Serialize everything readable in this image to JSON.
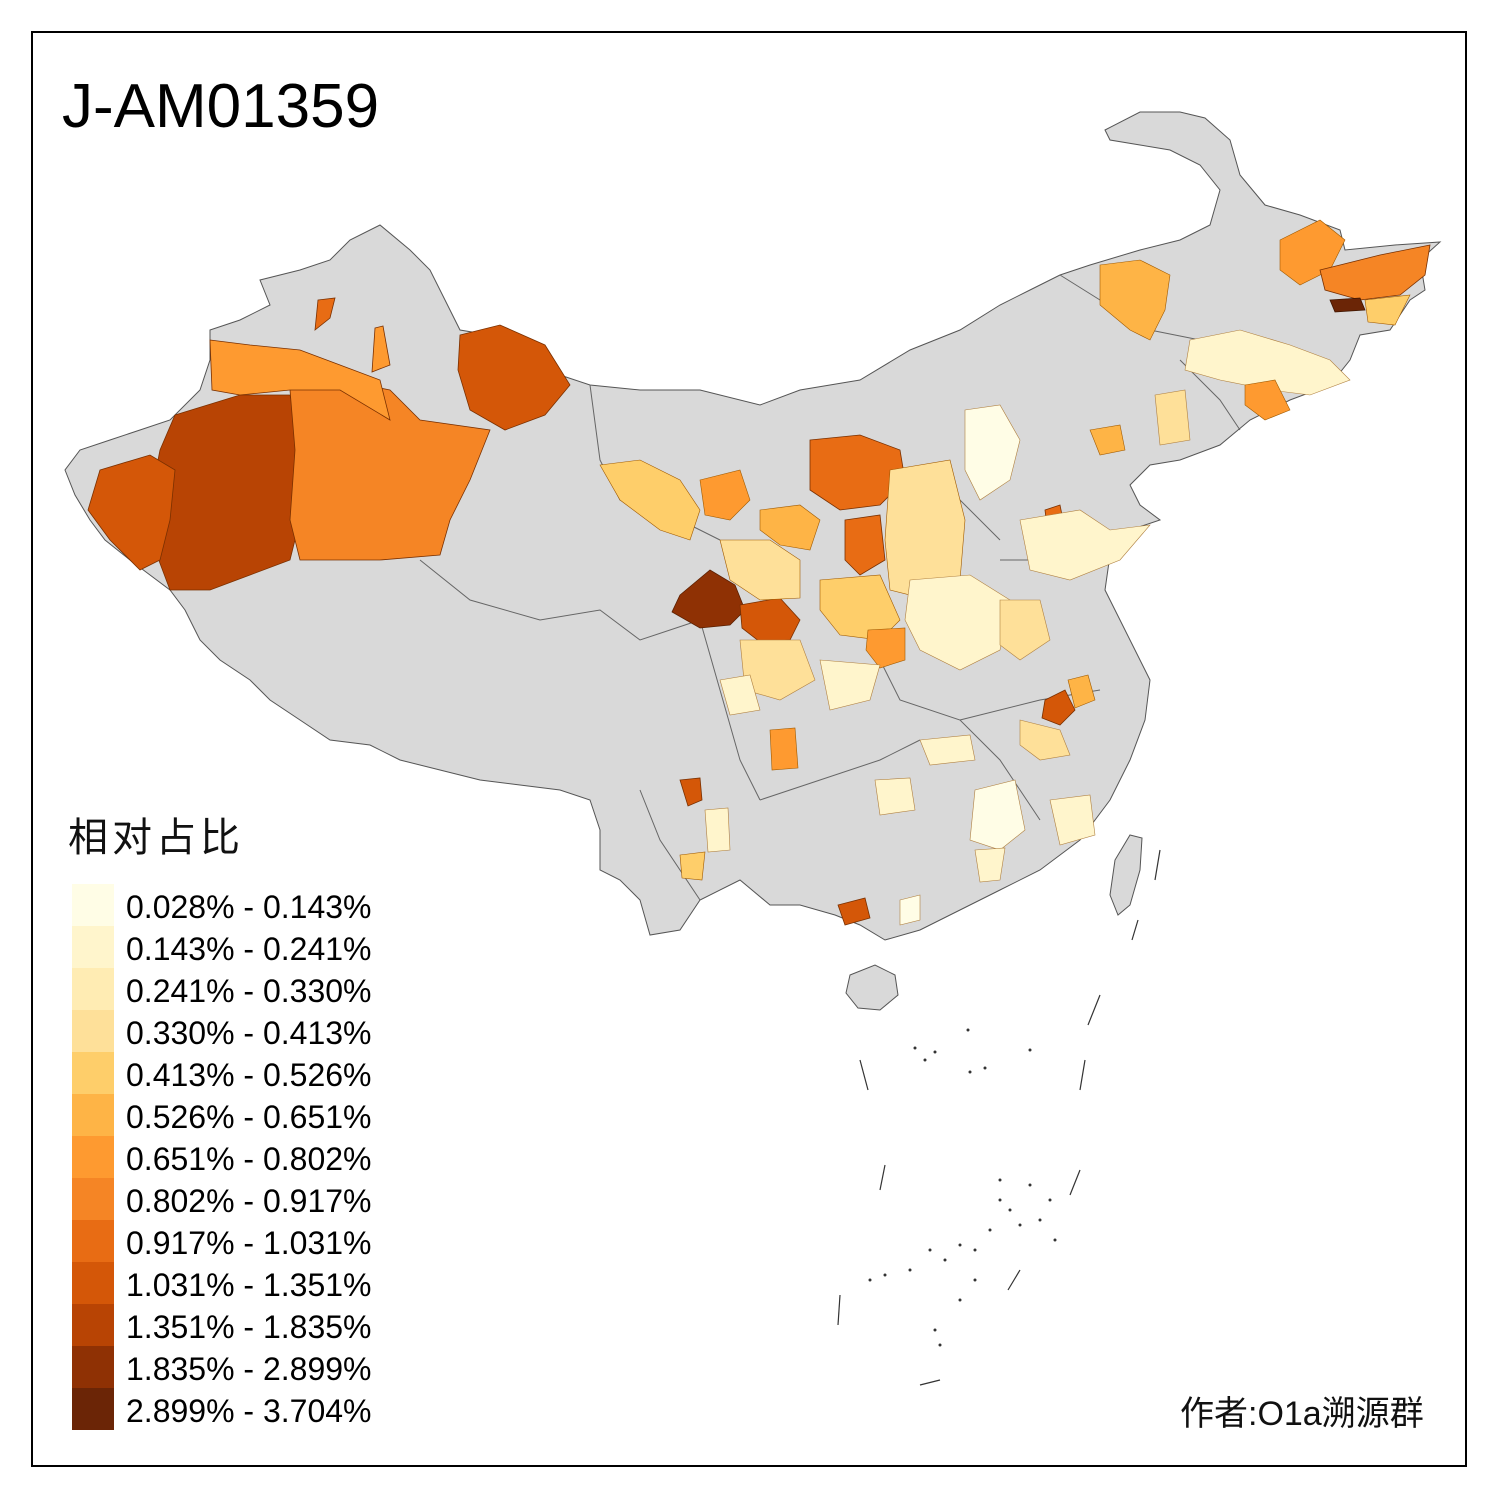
{
  "map": {
    "title": "J-AM01359",
    "credit": "作者:O1a溯源群",
    "legend_title": "相对占比",
    "base_color": "#d9d9d9",
    "legend": [
      {
        "label": "0.028% - 0.143%",
        "color": "#fffde6"
      },
      {
        "label": "0.143% - 0.241%",
        "color": "#fff5cc"
      },
      {
        "label": "0.241% - 0.330%",
        "color": "#ffecb3"
      },
      {
        "label": "0.330% - 0.413%",
        "color": "#fee099"
      },
      {
        "label": "0.413% - 0.526%",
        "color": "#fece6a"
      },
      {
        "label": "0.526% - 0.651%",
        "color": "#feb446"
      },
      {
        "label": "0.651% - 0.802%",
        "color": "#fe9a30"
      },
      {
        "label": "0.802% - 0.917%",
        "color": "#f58525"
      },
      {
        "label": "0.917% - 1.031%",
        "color": "#e86c14"
      },
      {
        "label": "1.031% - 1.351%",
        "color": "#d45708"
      },
      {
        "label": "1.351% - 1.835%",
        "color": "#b84404"
      },
      {
        "label": "1.835% - 2.899%",
        "color": "#8f3104"
      },
      {
        "label": "2.899% - 3.704%",
        "color": "#6b2506"
      }
    ]
  }
}
